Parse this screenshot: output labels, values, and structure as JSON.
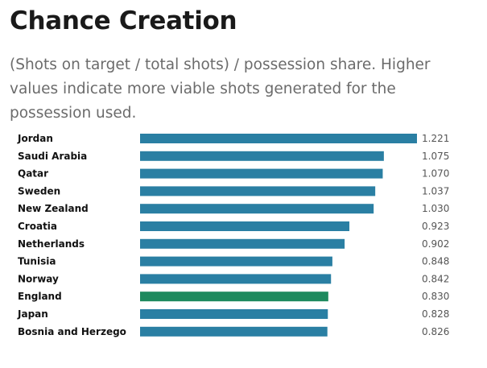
{
  "title": "Chance Creation",
  "subtitle": "(Shots on target / total shots) / possession share. Higher values indicate more viable shots generated for the possession used.",
  "colors": {
    "default_bar": "#2a7fa3",
    "highlight_bar": "#1e8a5e"
  },
  "chart_data": {
    "type": "bar",
    "orientation": "horizontal",
    "categories": [
      "Jordan",
      "Saudi Arabia",
      "Qatar",
      "Sweden",
      "New Zealand",
      "Croatia",
      "Netherlands",
      "Tunisia",
      "Norway",
      "England",
      "Japan",
      "Bosnia and Herzego"
    ],
    "values": [
      1.221,
      1.075,
      1.07,
      1.037,
      1.03,
      0.923,
      0.902,
      0.848,
      0.842,
      0.83,
      0.828,
      0.826
    ],
    "value_labels": [
      "1.221",
      "1.075",
      "1.070",
      "1.037",
      "1.030",
      "0.923",
      "0.902",
      "0.848",
      "0.842",
      "0.830",
      "0.828",
      "0.826"
    ],
    "highlight": "England",
    "xlim": [
      0,
      1.221
    ],
    "grid": false,
    "legend": "none"
  }
}
